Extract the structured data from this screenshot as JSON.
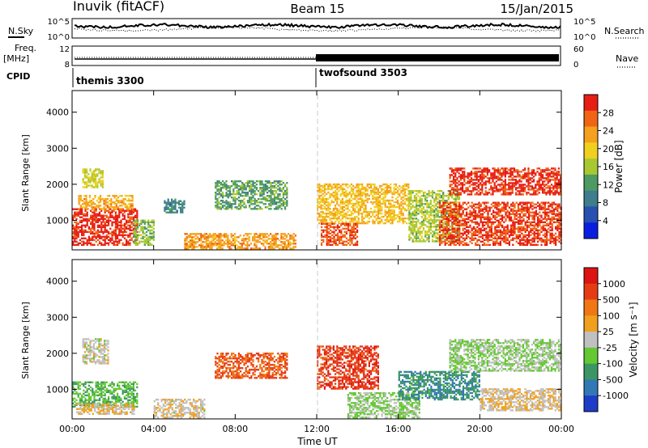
{
  "header": {
    "station": "Inuvik (fitACF)",
    "beam": "Beam 15",
    "date": "15/Jan/2015"
  },
  "aux_panels": {
    "nsky_label": "N.Sky",
    "nsky_ticks": [
      "10^5",
      "10^0"
    ],
    "nsearch_label": "N.Search",
    "nsearch_ticks": [
      "10^5",
      "10^0"
    ],
    "freq_label": "Freq.",
    "freq_unit": "[MHz]",
    "freq_ticks": [
      "12",
      "8"
    ],
    "nave_label": "Nave",
    "nave_ticks": [
      "60",
      "0"
    ],
    "cpid_label": "CPID",
    "cpid_segments": [
      {
        "name": "themis 3300",
        "start_hour": 0,
        "end_hour": 12
      },
      {
        "name": "twofsound 3503",
        "start_hour": 12,
        "end_hour": 24
      }
    ]
  },
  "axes": {
    "x_label": "Time UT",
    "x_ticks": [
      "00:00",
      "04:00",
      "08:00",
      "12:00",
      "16:00",
      "20:00",
      "00:00"
    ],
    "x_range_hours": [
      0,
      24
    ],
    "y_label": "Slant Range [km]",
    "y_ticks": [
      "1000",
      "2000",
      "3000",
      "4000"
    ],
    "y_range_km": [
      180,
      4600
    ]
  },
  "colorbars": {
    "power": {
      "label": "Power [dB]",
      "ticks": [
        "4",
        "8",
        "12",
        "16",
        "20",
        "24",
        "28"
      ],
      "colors": [
        "#0a1ee0",
        "#2850b0",
        "#3d7d8c",
        "#4d9a62",
        "#a8c832",
        "#f0d01e",
        "#f5a01e",
        "#f06414",
        "#e61e14"
      ]
    },
    "velocity": {
      "label": "Velocity [m s⁻¹]",
      "ticks": [
        "1000",
        "500",
        "100",
        "25",
        "-25",
        "-100",
        "-500",
        "-1000"
      ],
      "colors": [
        "#1e3cc8",
        "#3278b4",
        "#3c9664",
        "#64c832",
        "#c0c0c0",
        "#f0a01e",
        "#f07814",
        "#e63c14",
        "#dc1414"
      ]
    }
  },
  "chart_data": [
    {
      "type": "heatmap",
      "title": "Power [dB]",
      "xlabel": "Time UT",
      "ylabel": "Slant Range [km]",
      "xlim": [
        0,
        24
      ],
      "ylim": [
        180,
        4600
      ],
      "value_range": [
        0,
        30
      ],
      "regions": [
        {
          "t0": 0.0,
          "t1": 3.2,
          "r0": 300,
          "r1": 1300,
          "value": 28
        },
        {
          "t0": 0.3,
          "t1": 3.0,
          "r0": 1300,
          "r1": 1700,
          "value": 21
        },
        {
          "t0": 0.5,
          "t1": 1.5,
          "r0": 1900,
          "r1": 2400,
          "value": 17
        },
        {
          "t0": 3.0,
          "t1": 4.0,
          "r0": 300,
          "r1": 1000,
          "value": 14
        },
        {
          "t0": 4.5,
          "t1": 5.5,
          "r0": 1200,
          "r1": 1600,
          "value": 9
        },
        {
          "t0": 5.5,
          "t1": 11.0,
          "r0": 200,
          "r1": 650,
          "value": 22
        },
        {
          "t0": 7.0,
          "t1": 10.5,
          "r0": 1300,
          "r1": 2100,
          "value": 12
        },
        {
          "t0": 12.0,
          "t1": 16.5,
          "r0": 900,
          "r1": 2000,
          "value": 20
        },
        {
          "t0": 12.2,
          "t1": 14.0,
          "r0": 300,
          "r1": 900,
          "value": 26
        },
        {
          "t0": 16.5,
          "t1": 19.0,
          "r0": 400,
          "r1": 1800,
          "value": 15
        },
        {
          "t0": 18.5,
          "t1": 24.0,
          "r0": 1700,
          "r1": 2450,
          "value": 28
        },
        {
          "t0": 18.0,
          "t1": 24.0,
          "r0": 300,
          "r1": 1500,
          "value": 27
        }
      ]
    },
    {
      "type": "heatmap",
      "title": "Velocity [m s⁻¹]",
      "xlabel": "Time UT",
      "ylabel": "Slant Range [km]",
      "xlim": [
        0,
        24
      ],
      "ylim": [
        180,
        4600
      ],
      "value_range": [
        -1000,
        1000
      ],
      "regions": [
        {
          "t0": 0.0,
          "t1": 3.2,
          "r0": 500,
          "r1": 1200,
          "value": -300
        },
        {
          "t0": 0.2,
          "t1": 3.0,
          "r0": 300,
          "r1": 600,
          "value": 150
        },
        {
          "t0": 0.5,
          "t1": 1.8,
          "r0": 1700,
          "r1": 2400,
          "value": 0
        },
        {
          "t0": 4.0,
          "t1": 6.5,
          "r0": 200,
          "r1": 700,
          "value": 60
        },
        {
          "t0": 7.0,
          "t1": 10.5,
          "r0": 1300,
          "r1": 2000,
          "value": 600
        },
        {
          "t0": 12.0,
          "t1": 15.0,
          "r0": 1000,
          "r1": 2200,
          "value": 700
        },
        {
          "t0": 13.5,
          "t1": 17.0,
          "r0": 200,
          "r1": 900,
          "value": -150
        },
        {
          "t0": 16.0,
          "t1": 20.0,
          "r0": 700,
          "r1": 1500,
          "value": -500
        },
        {
          "t0": 18.5,
          "t1": 24.0,
          "r0": 1500,
          "r1": 2400,
          "value": -120
        },
        {
          "t0": 20.0,
          "t1": 24.0,
          "r0": 400,
          "r1": 1000,
          "value": 90
        }
      ]
    }
  ]
}
